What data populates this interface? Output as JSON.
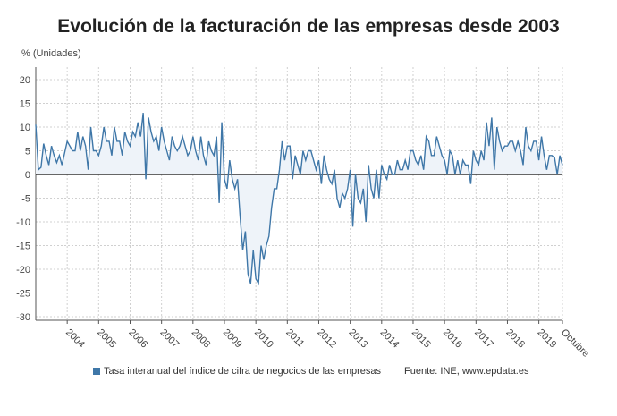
{
  "chart_data": {
    "type": "area",
    "title": "Evolución de la facturación de las empresas desde 2003",
    "ylabel": "% (Unidades)",
    "xlabel": "",
    "ylim": [
      -30,
      22
    ],
    "yticks": [
      20,
      15,
      10,
      5,
      0,
      -5,
      -10,
      -15,
      -20,
      -25,
      -30
    ],
    "xticks": [
      "2004",
      "2005",
      "2006",
      "2007",
      "2008",
      "2009",
      "2010",
      "2011",
      "2012",
      "2013",
      "2014",
      "2015",
      "2016",
      "2017",
      "2018",
      "2019",
      "Octubre"
    ],
    "x_start": "2003-01",
    "x_end": "2019-10",
    "frequency": "monthly",
    "grid": true,
    "legend_position": "bottom",
    "series": [
      {
        "name": "Tasa interanual del índice de cifra de negocios de las empresas",
        "color": "#3f77a8",
        "values": [
          10.5,
          1,
          1.5,
          6.5,
          4,
          2,
          6,
          4,
          2.5,
          4,
          2,
          4.5,
          7,
          6,
          5,
          5,
          9,
          5,
          8,
          6,
          1,
          10,
          5,
          5,
          4,
          6,
          10,
          7,
          7,
          4,
          10,
          7,
          7,
          4,
          9,
          7,
          6,
          9,
          8,
          11,
          8,
          13,
          -1,
          12,
          9,
          7,
          8,
          5,
          10,
          7,
          5,
          3,
          8,
          6,
          5,
          6,
          8,
          6,
          4,
          5,
          8,
          5,
          3,
          8,
          4,
          2,
          7,
          5,
          4,
          8,
          -6,
          11,
          -1,
          -3,
          3,
          -1,
          -3,
          -1,
          -9,
          -16,
          -12,
          -21,
          -23,
          -16,
          -22,
          -23,
          -15,
          -18,
          -15,
          -13,
          -7,
          -3,
          -3,
          1,
          7,
          3,
          6,
          6,
          -1,
          4,
          2,
          0,
          5,
          3,
          5,
          5,
          3,
          1,
          3,
          -2,
          4,
          1,
          -1,
          -2,
          1,
          -5,
          -7,
          -4,
          -5,
          -3,
          1,
          -11,
          0,
          -5,
          -6,
          -3,
          -10,
          2,
          -3,
          -5,
          1,
          -5,
          2,
          0,
          -1,
          2,
          0,
          0,
          3,
          1,
          1,
          3,
          1,
          5,
          5,
          3,
          2,
          4,
          1,
          8,
          7,
          4,
          4,
          8,
          6,
          4,
          3,
          0,
          5,
          4,
          0,
          3,
          0,
          3,
          2,
          2,
          -2,
          5,
          3,
          2,
          5,
          3,
          11,
          6,
          12,
          1,
          10,
          7,
          5,
          6,
          6,
          7,
          7,
          5,
          7,
          5,
          2,
          10,
          6,
          5,
          7,
          7,
          3,
          8,
          4,
          1,
          4,
          4,
          3.5,
          0,
          4,
          2
        ]
      }
    ],
    "source": "Fuente: INE, www.epdata.es"
  },
  "colors": {
    "line": "#3f77a8",
    "fill": "#eef3f9",
    "zero": "#333333",
    "grid": "#d0d0d0"
  }
}
